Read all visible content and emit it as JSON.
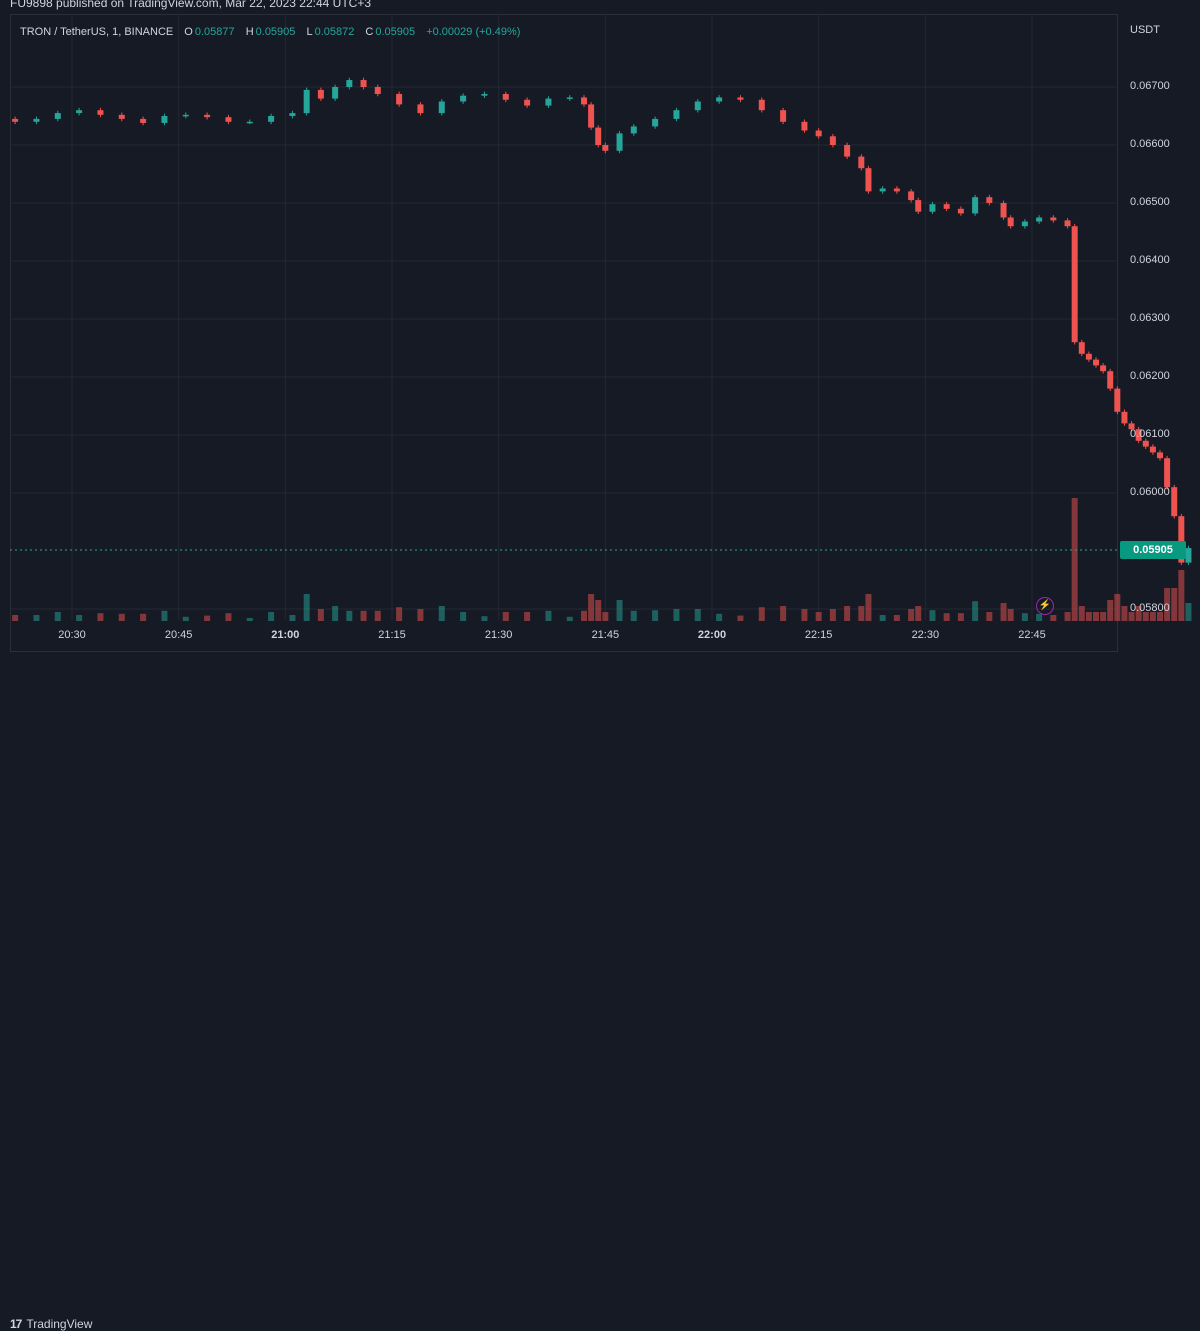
{
  "header": {
    "published_text": "FU9898 published on TradingView.com, Mar 22, 2023 22:44 UTC+3"
  },
  "legend": {
    "symbol": "TRON / TetherUS, 1, BINANCE",
    "o_label": "O",
    "o_value": "0.05877",
    "h_label": "H",
    "h_value": "0.05905",
    "l_label": "L",
    "l_value": "0.05872",
    "c_label": "C",
    "c_value": "0.05905",
    "change": "+0.00029 (+0.49%)"
  },
  "footer": {
    "brand": "TradingView",
    "logo": "17"
  },
  "colors": {
    "up": "#26a69a",
    "down": "#ef5350",
    "background": "#161a25",
    "grid": "#242833",
    "price_tag": "#089981"
  },
  "chart_data": {
    "type": "candlestick",
    "axis_title": "USDT",
    "current_price_label": "0.05905",
    "y_ticks": [
      "0.06700",
      "0.06600",
      "0.06500",
      "0.06400",
      "0.06300",
      "0.06200",
      "0.06100",
      "0.06000",
      "0.05800"
    ],
    "y_tick_values": [
      0.067,
      0.066,
      0.065,
      0.064,
      0.063,
      0.062,
      0.061,
      0.06,
      0.058
    ],
    "x_ticks": [
      "20:30",
      "20:45",
      "21:00",
      "21:15",
      "21:30",
      "21:45",
      "22:00",
      "22:15",
      "22:30",
      "22:45"
    ],
    "x_tick_minutes": [
      1230,
      1245,
      1260,
      1275,
      1290,
      1305,
      1320,
      1335,
      1350,
      1365
    ],
    "bold_ticks": [
      "21:00",
      "22:00"
    ],
    "price_close_series": [
      [
        1222,
        0.0664
      ],
      [
        1225,
        0.06645
      ],
      [
        1228,
        0.06655
      ],
      [
        1231,
        0.0666
      ],
      [
        1234,
        0.06652
      ],
      [
        1237,
        0.06645
      ],
      [
        1240,
        0.06638
      ],
      [
        1243,
        0.0665
      ],
      [
        1246,
        0.06652
      ],
      [
        1249,
        0.06648
      ],
      [
        1252,
        0.0664
      ],
      [
        1255,
        0.0664
      ],
      [
        1258,
        0.0665
      ],
      [
        1261,
        0.06655
      ],
      [
        1263,
        0.06695
      ],
      [
        1265,
        0.0668
      ],
      [
        1267,
        0.067
      ],
      [
        1269,
        0.06712
      ],
      [
        1271,
        0.067
      ],
      [
        1273,
        0.06688
      ],
      [
        1276,
        0.0667
      ],
      [
        1279,
        0.06655
      ],
      [
        1282,
        0.06675
      ],
      [
        1285,
        0.06685
      ],
      [
        1288,
        0.06688
      ],
      [
        1291,
        0.06678
      ],
      [
        1294,
        0.06668
      ],
      [
        1297,
        0.0668
      ],
      [
        1300,
        0.06682
      ],
      [
        1302,
        0.0667
      ],
      [
        1303,
        0.0663
      ],
      [
        1304,
        0.066
      ],
      [
        1305,
        0.0659
      ],
      [
        1307,
        0.0662
      ],
      [
        1309,
        0.06632
      ],
      [
        1312,
        0.06645
      ],
      [
        1315,
        0.0666
      ],
      [
        1318,
        0.06675
      ],
      [
        1321,
        0.06682
      ],
      [
        1324,
        0.06678
      ],
      [
        1327,
        0.0666
      ],
      [
        1330,
        0.0664
      ],
      [
        1333,
        0.06625
      ],
      [
        1335,
        0.06615
      ],
      [
        1337,
        0.066
      ],
      [
        1339,
        0.0658
      ],
      [
        1341,
        0.0656
      ],
      [
        1342,
        0.0652
      ],
      [
        1344,
        0.06525
      ],
      [
        1346,
        0.0652
      ],
      [
        1348,
        0.06505
      ],
      [
        1349,
        0.06485
      ],
      [
        1351,
        0.06498
      ],
      [
        1353,
        0.0649
      ],
      [
        1355,
        0.06482
      ],
      [
        1357,
        0.0651
      ],
      [
        1359,
        0.065
      ],
      [
        1361,
        0.06475
      ],
      [
        1362,
        0.0646
      ],
      [
        1364,
        0.06468
      ],
      [
        1366,
        0.06475
      ],
      [
        1368,
        0.0647
      ],
      [
        1370,
        0.0646
      ],
      [
        1371,
        0.0626
      ],
      [
        1372,
        0.0624
      ],
      [
        1373,
        0.0623
      ],
      [
        1374,
        0.0622
      ],
      [
        1375,
        0.0621
      ],
      [
        1376,
        0.0618
      ],
      [
        1377,
        0.0614
      ],
      [
        1378,
        0.0612
      ],
      [
        1379,
        0.0611
      ],
      [
        1380,
        0.0609
      ],
      [
        1381,
        0.0608
      ],
      [
        1382,
        0.0607
      ],
      [
        1383,
        0.0606
      ],
      [
        1384,
        0.0601
      ],
      [
        1385,
        0.0596
      ],
      [
        1386,
        0.0588
      ],
      [
        1387,
        0.05905
      ]
    ]
  }
}
